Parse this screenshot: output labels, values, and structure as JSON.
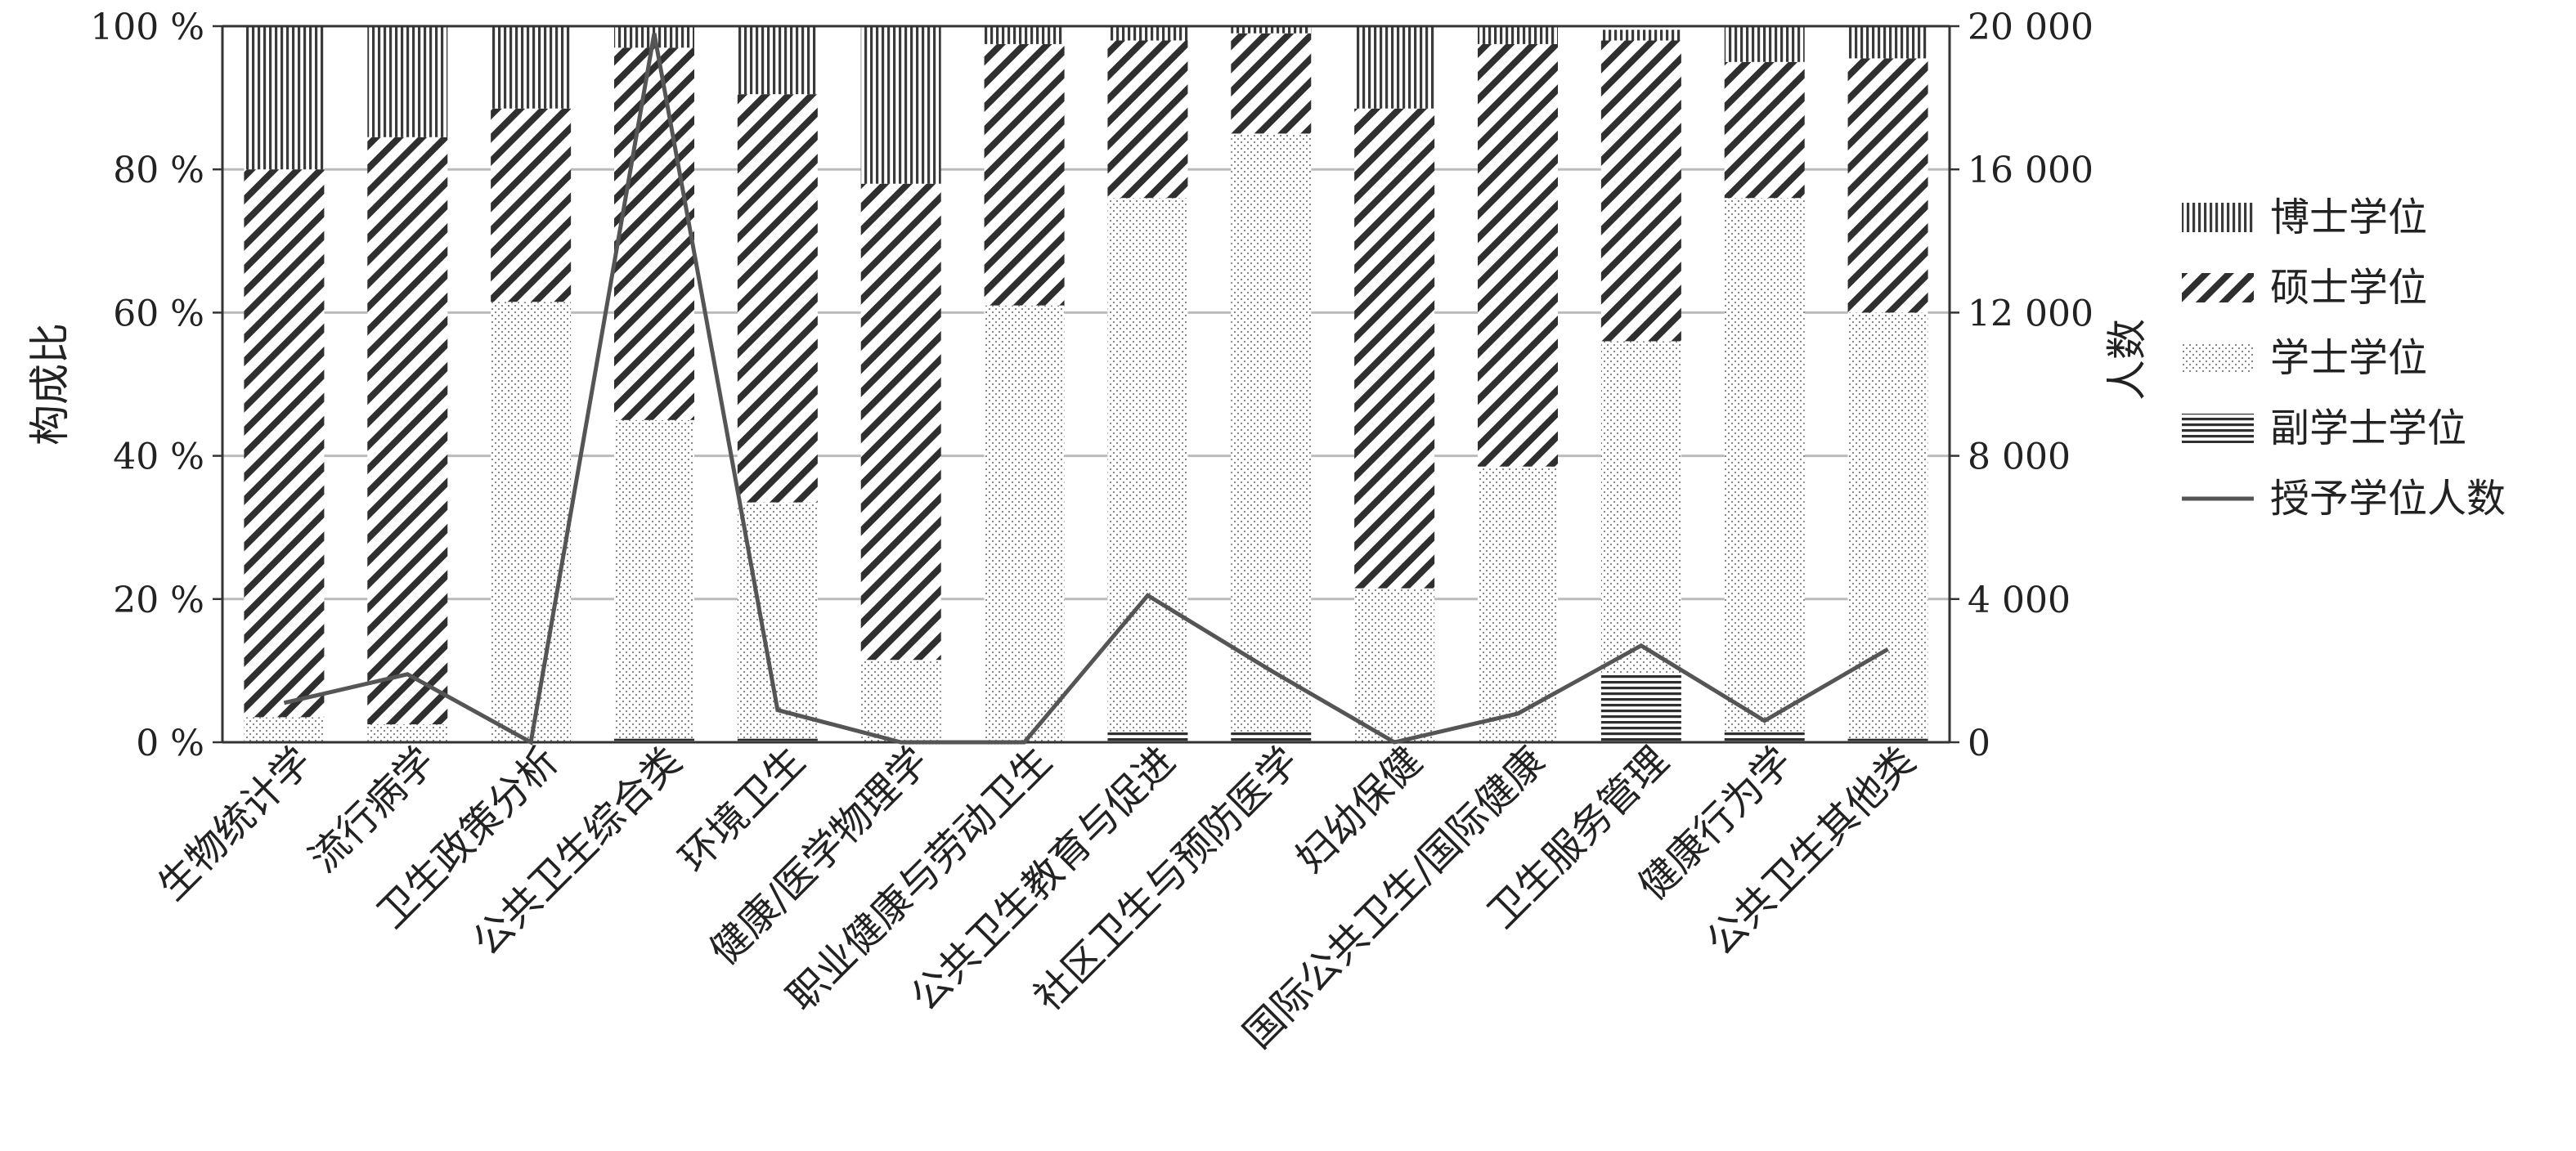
{
  "chart_data": {
    "type": "bar",
    "stacked": true,
    "normalized": true,
    "title": "",
    "xlabel": "",
    "ylabel": "构成比",
    "y2label": "人数",
    "ylim": [
      0,
      100
    ],
    "y2lim": [
      0,
      20000
    ],
    "grid": true,
    "legend_position": "right",
    "y_ticks": [
      "0 %",
      "20 %",
      "40 %",
      "60 %",
      "80 %",
      "100 %"
    ],
    "y2_ticks": [
      "0",
      "4 000",
      "8 000",
      "12 000",
      "16 000",
      "20 000"
    ],
    "categories": [
      "生物统计学",
      "流行病学",
      "卫生政策分析",
      "公共卫生综合类",
      "环境卫生",
      "健康/医学物理学",
      "职业健康与劳动卫生",
      "公共卫生教育与促进",
      "社区卫生与预防医学",
      "妇幼保健",
      "国际公共卫生/国际健康",
      "卫生服务管理",
      "健康行为学",
      "公共卫生其他类"
    ],
    "series": [
      {
        "name": "副学士学位",
        "pattern": "horizontal",
        "values": [
          0,
          0,
          0,
          0.5,
          0.5,
          0,
          0,
          1.5,
          1.5,
          0,
          0,
          9.5,
          1.5,
          0.5
        ]
      },
      {
        "name": "学士学位",
        "pattern": "dots",
        "values": [
          3.5,
          2.5,
          61.5,
          44.5,
          33,
          11.5,
          61,
          74.5,
          83.5,
          21.5,
          38.5,
          46.5,
          74.5,
          59.5
        ]
      },
      {
        "name": "硕士学位",
        "pattern": "diagonal",
        "values": [
          76.5,
          82,
          27,
          52,
          57,
          66.5,
          36.5,
          22,
          14,
          67,
          59,
          42,
          19,
          35.5
        ]
      },
      {
        "name": "博士学位",
        "pattern": "vertical",
        "values": [
          20,
          15.5,
          11.5,
          3,
          9.5,
          22,
          2.5,
          2,
          1,
          11.5,
          2.5,
          1.5,
          5,
          4.5
        ]
      }
    ],
    "line_series": {
      "name": "授予学位人数",
      "axis": "right",
      "values": [
        1100,
        1900,
        0,
        19800,
        900,
        0,
        0,
        4100,
        2000,
        0,
        800,
        2700,
        600,
        2600
      ]
    },
    "legend": [
      "博士学位",
      "硕士学位",
      "学士学位",
      "副学士学位",
      "授予学位人数"
    ],
    "colors": {
      "pattern_ink": "#3a3a3a",
      "line": "#555555",
      "grid": "#bbbbbb",
      "axis": "#333333"
    }
  }
}
